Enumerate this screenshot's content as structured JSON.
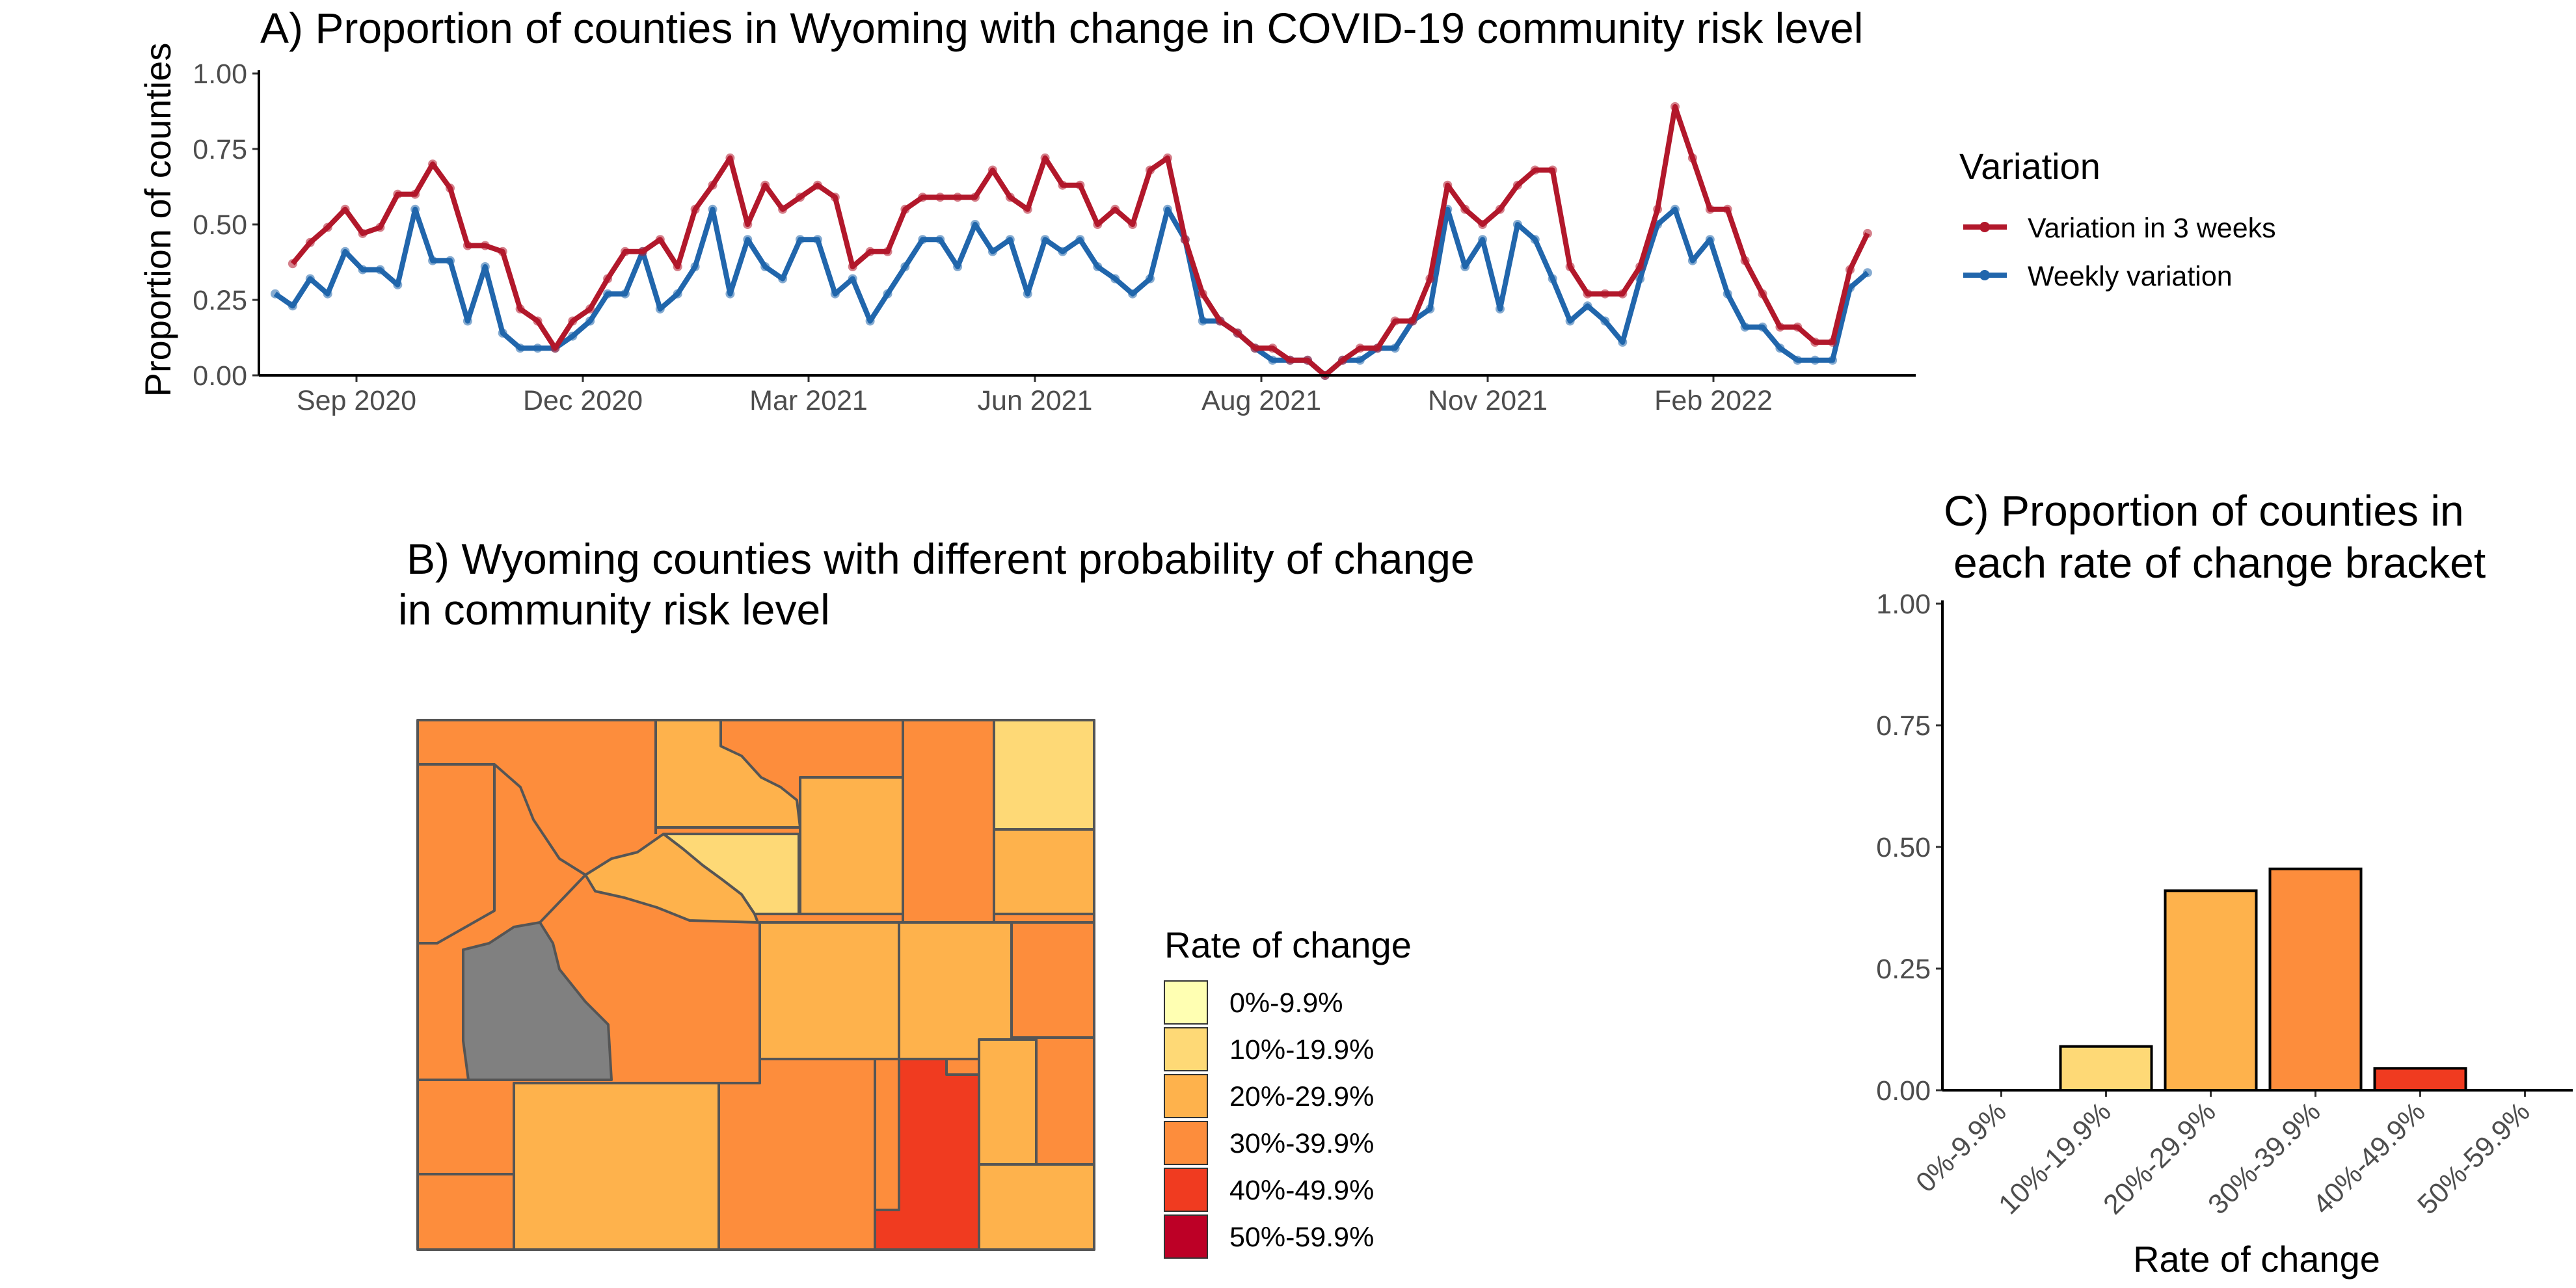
{
  "chart_data": [
    {
      "type": "line",
      "title": "A) Proportion of counties in Wyoming with change in COVID-19 community risk level",
      "ylabel": "Proportion of counties",
      "xlabel": "",
      "ylim": [
        0,
        1
      ],
      "yticks": [
        "0.00",
        "0.25",
        "0.50",
        "0.75",
        "1.00"
      ],
      "xticks": [
        "Sep 2020",
        "Dec 2020",
        "Mar 2021",
        "Jun 2021",
        "Aug 2021",
        "Nov 2021",
        "Feb 2022"
      ],
      "x_start": "2020-08-09",
      "x_step_days": 7,
      "legend": {
        "title": "Variation",
        "position": "right"
      },
      "series": [
        {
          "name": "Variation in 3 weeks",
          "color": "#b2182b",
          "start_index": 1,
          "values": [
            0.37,
            0.44,
            0.49,
            0.55,
            0.47,
            0.49,
            0.6,
            0.6,
            0.7,
            0.62,
            0.43,
            0.43,
            0.41,
            0.22,
            0.18,
            0.09,
            0.18,
            0.22,
            0.32,
            0.41,
            0.41,
            0.45,
            0.36,
            0.55,
            0.63,
            0.72,
            0.5,
            0.63,
            0.55,
            0.59,
            0.63,
            0.59,
            0.36,
            0.41,
            0.41,
            0.55,
            0.59,
            0.59,
            0.59,
            0.59,
            0.68,
            0.59,
            0.55,
            0.72,
            0.63,
            0.63,
            0.5,
            0.55,
            0.5,
            0.68,
            0.72,
            0.45,
            0.27,
            0.18,
            0.14,
            0.09,
            0.09,
            0.05,
            0.05,
            0.0,
            0.05,
            0.09,
            0.09,
            0.18,
            0.18,
            0.32,
            0.63,
            0.55,
            0.5,
            0.55,
            0.63,
            0.68,
            0.68,
            0.36,
            0.27,
            0.27,
            0.27,
            0.36,
            0.55,
            0.89,
            0.72,
            0.55,
            0.55,
            0.38,
            0.27,
            0.16,
            0.16,
            0.11,
            0.11,
            0.35,
            0.47
          ]
        },
        {
          "name": "Weekly variation",
          "color": "#2166ac",
          "start_index": 0,
          "values": [
            0.27,
            0.23,
            0.32,
            0.27,
            0.41,
            0.35,
            0.35,
            0.3,
            0.55,
            0.38,
            0.38,
            0.18,
            0.36,
            0.14,
            0.09,
            0.09,
            0.09,
            0.13,
            0.18,
            0.27,
            0.27,
            0.41,
            0.22,
            0.27,
            0.36,
            0.55,
            0.27,
            0.45,
            0.36,
            0.32,
            0.45,
            0.45,
            0.27,
            0.32,
            0.18,
            0.27,
            0.36,
            0.45,
            0.45,
            0.36,
            0.5,
            0.41,
            0.45,
            0.27,
            0.45,
            0.41,
            0.45,
            0.36,
            0.32,
            0.27,
            0.32,
            0.55,
            0.45,
            0.18,
            0.18,
            0.14,
            0.09,
            0.05,
            0.05,
            0.05,
            0.0,
            0.05,
            0.05,
            0.09,
            0.09,
            0.18,
            0.22,
            0.55,
            0.36,
            0.45,
            0.22,
            0.5,
            0.45,
            0.32,
            0.18,
            0.23,
            0.18,
            0.11,
            0.32,
            0.5,
            0.55,
            0.38,
            0.45,
            0.27,
            0.16,
            0.16,
            0.09,
            0.05,
            0.05,
            0.05,
            0.29,
            0.34
          ]
        }
      ]
    },
    {
      "type": "map",
      "title_line1": "B)  Wyoming counties with different probability of change",
      "title_line2": "in community risk level",
      "legend": {
        "title": "Rate of change",
        "position": "right",
        "items": [
          {
            "label": "0%-9.9%",
            "color": "#ffffb2"
          },
          {
            "label": "10%-19.9%",
            "color": "#fed976"
          },
          {
            "label": "20%-29.9%",
            "color": "#feb24c"
          },
          {
            "label": "30%-39.9%",
            "color": "#fd8d3c"
          },
          {
            "label": "40%-49.9%",
            "color": "#f03b20"
          },
          {
            "label": "50%-59.9%",
            "color": "#bd0026"
          }
        ]
      },
      "missing_color": "#808080",
      "border_color": "#555555"
    },
    {
      "type": "bar",
      "title_line1": "C) Proportion of counties in",
      "title_line2": "each rate of change bracket",
      "xlabel": "Rate of change",
      "ylabel": "",
      "ylim": [
        0,
        1
      ],
      "yticks": [
        "0.00",
        "0.25",
        "0.50",
        "0.75",
        "1.00"
      ],
      "categories": [
        "0%-9.9%",
        "10%-19.9%",
        "20%-29.9%",
        "30%-39.9%",
        "40%-49.9%",
        "50%-59.9%"
      ],
      "values": [
        0,
        0.09,
        0.41,
        0.455,
        0.045,
        0
      ],
      "colors": [
        "#ffffb2",
        "#fed976",
        "#feb24c",
        "#fd8d3c",
        "#f03b20",
        "#bd0026"
      ]
    }
  ]
}
